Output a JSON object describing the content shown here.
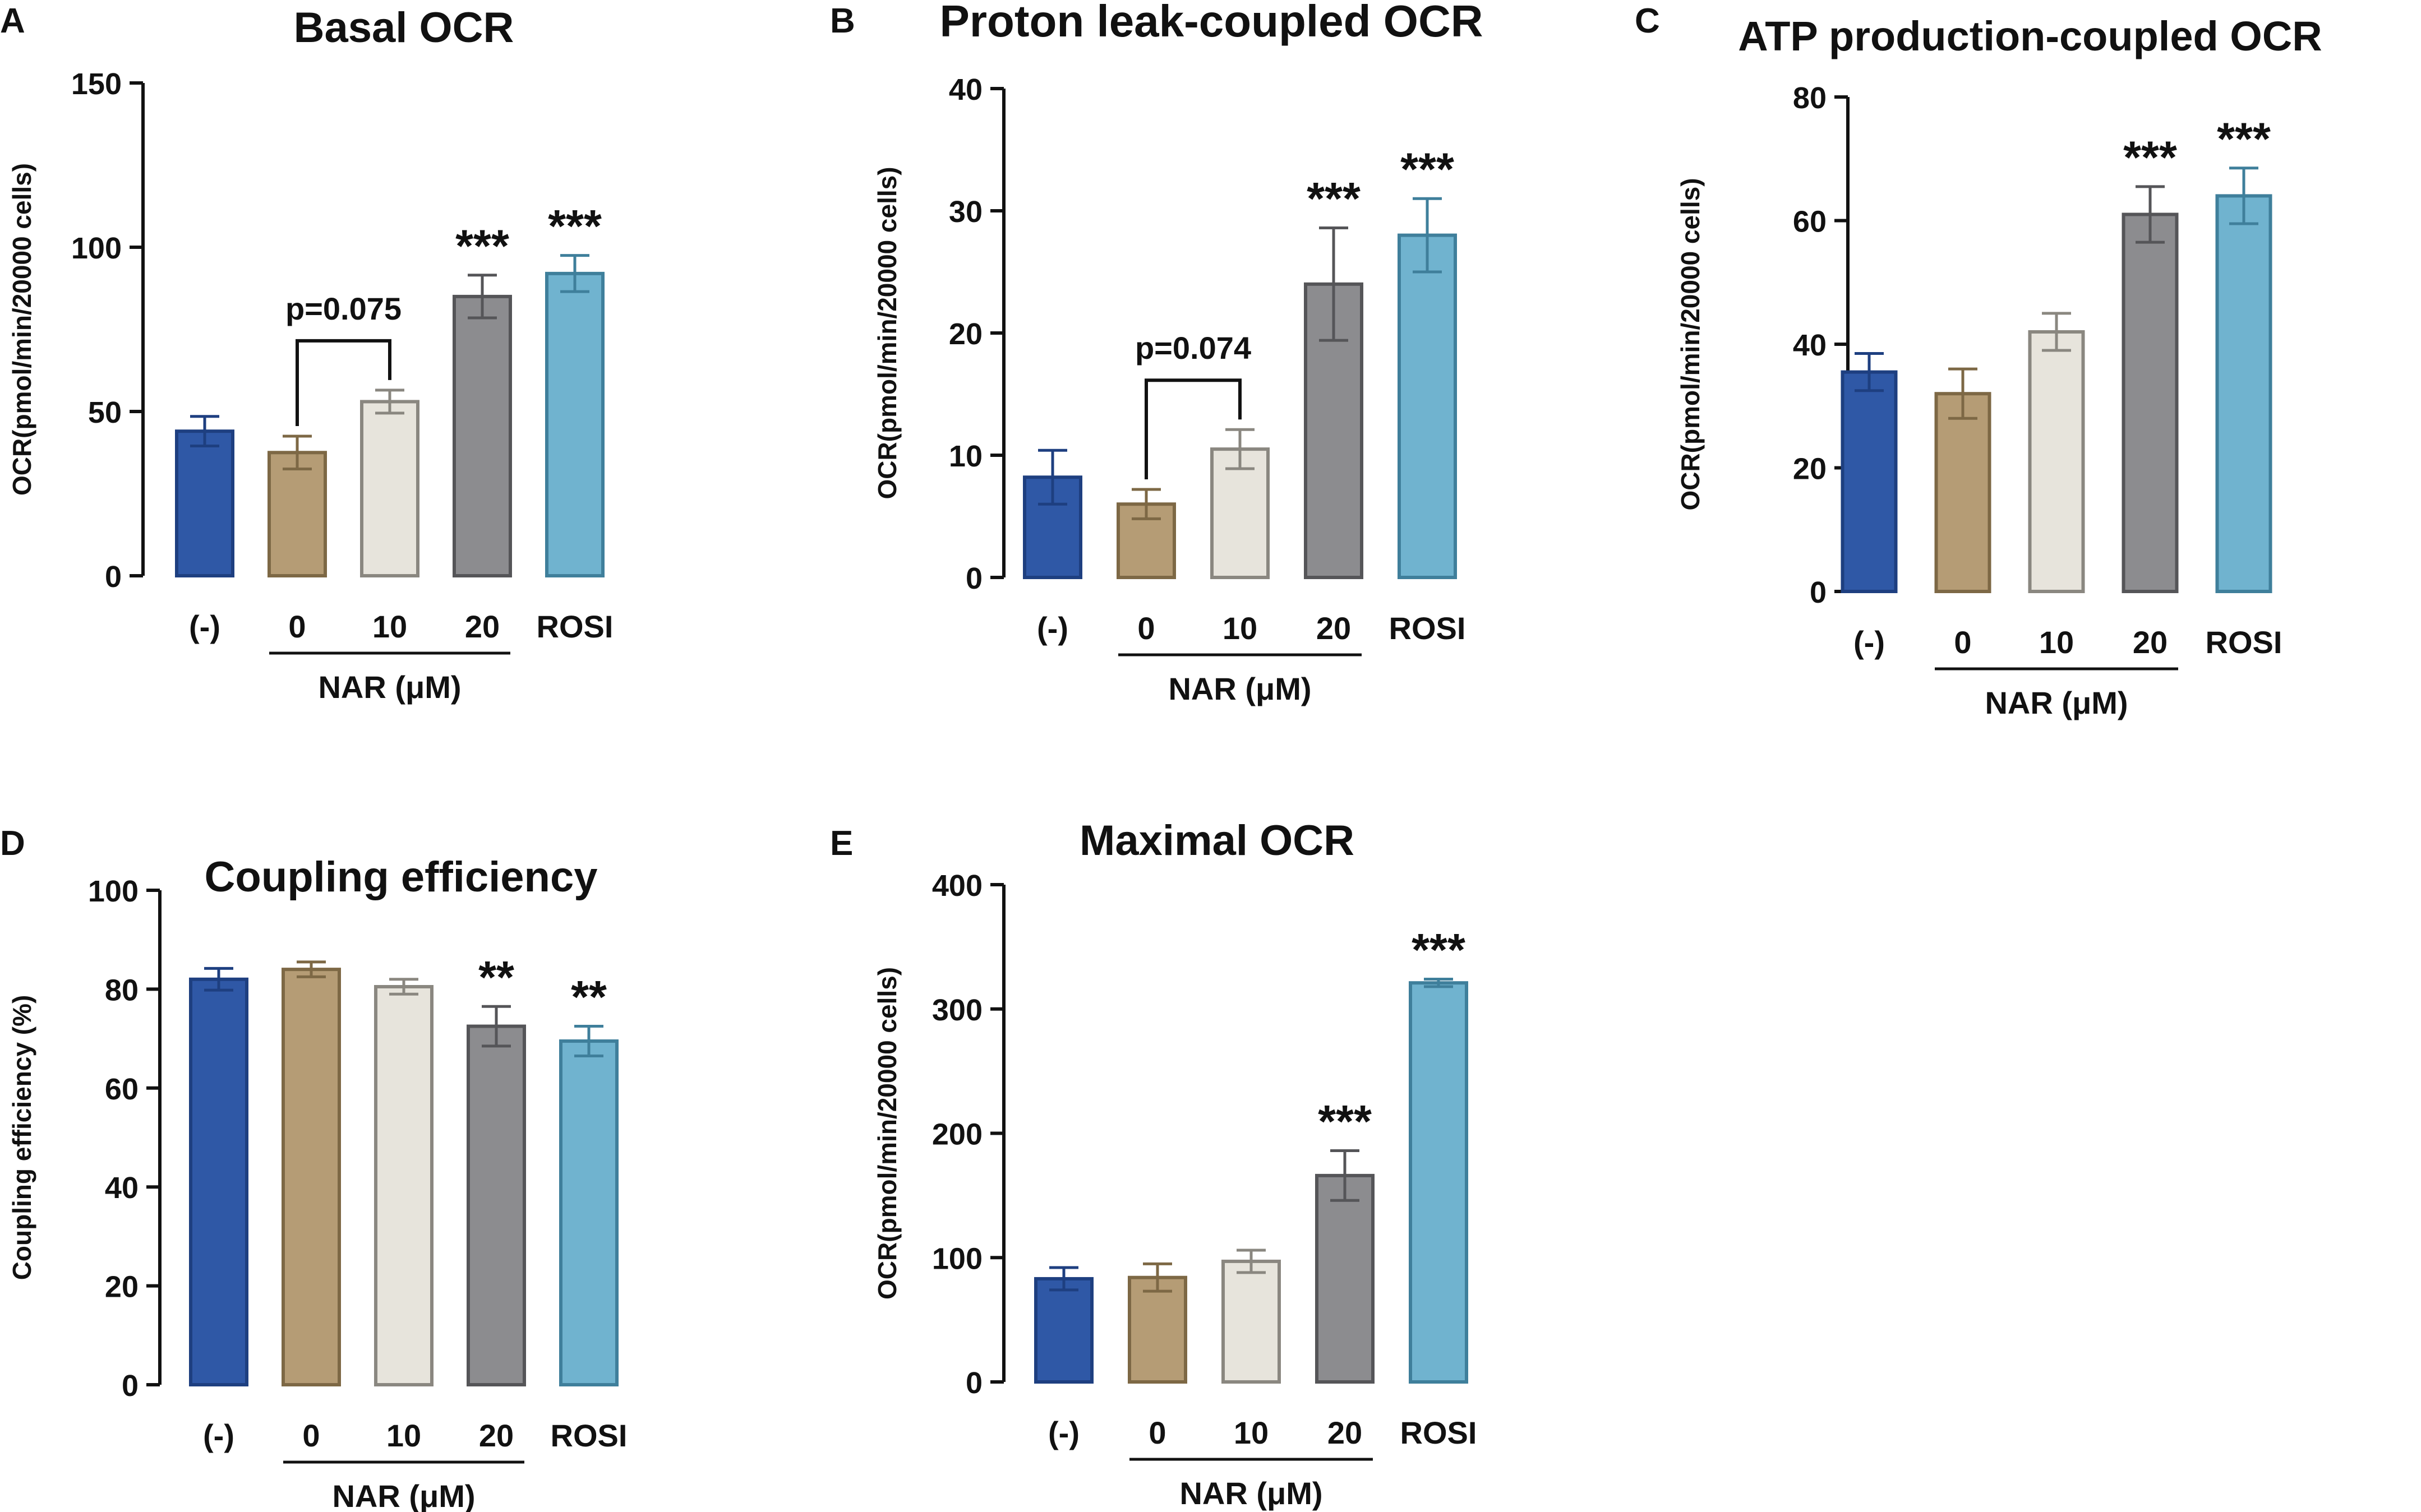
{
  "colors": {
    "vehicle": "#2f58a6",
    "nar0": "#b59c75",
    "nar10": "#e7e4dc",
    "nar20": "#8c8c8f",
    "rosi": "#70b3cf",
    "outline": "#1f1f1f"
  },
  "chart_data": [
    {
      "panel": "A",
      "type": "bar",
      "title": "Basal OCR",
      "ylabel": "OCR(pmol/min/20000 cells)",
      "xlabel": "NAR (μM)",
      "categories": [
        "(-)",
        "0",
        "10",
        "20",
        "ROSI"
      ],
      "values": [
        44,
        37.5,
        53,
        85,
        92
      ],
      "errors": [
        4.5,
        5,
        3.5,
        6.5,
        5.5
      ],
      "significance": [
        "",
        "",
        "",
        "***",
        "***"
      ],
      "ylim": [
        0,
        150
      ],
      "yticks": [
        0,
        50,
        100,
        150
      ],
      "yticklabels": [
        "0",
        "50",
        "100",
        "150"
      ],
      "comparison": {
        "from": 1,
        "to": 2,
        "label": "p=0.075"
      }
    },
    {
      "panel": "B",
      "type": "bar",
      "title": "Proton leak-coupled OCR",
      "ylabel": "OCR(pmol/min/20000 cells)",
      "xlabel": "NAR (μM)",
      "categories": [
        "(-)",
        "0",
        "10",
        "20",
        "ROSI"
      ],
      "values": [
        8.2,
        6,
        10.5,
        24,
        28
      ],
      "errors": [
        2.2,
        1.2,
        1.6,
        4.6,
        3
      ],
      "significance": [
        "",
        "",
        "",
        "***",
        "***"
      ],
      "ylim": [
        0,
        40
      ],
      "yticks": [
        0,
        10,
        20,
        30,
        40
      ],
      "yticklabels": [
        "0",
        "10",
        "20",
        "30",
        "40"
      ],
      "comparison": {
        "from": 1,
        "to": 2,
        "label": "p=0.074"
      }
    },
    {
      "panel": "C",
      "type": "bar",
      "title": "ATP production-coupled OCR",
      "ylabel": "OCR(pmol/min/20000 cells)",
      "xlabel": "NAR (μM)",
      "categories": [
        "(-)",
        "0",
        "10",
        "20",
        "ROSI"
      ],
      "values": [
        35.5,
        32,
        42,
        61,
        64
      ],
      "errors": [
        3,
        4,
        3,
        4.5,
        4.5
      ],
      "significance": [
        "",
        "",
        "",
        "***",
        "***"
      ],
      "ylim": [
        0,
        80
      ],
      "yticks": [
        0,
        20,
        40,
        60,
        80
      ],
      "yticklabels": [
        "0",
        "20",
        "40",
        "60",
        "80"
      ]
    },
    {
      "panel": "D",
      "type": "bar",
      "title": "Coupling efficiency",
      "ylabel": "Coupling efficiency (%)",
      "xlabel": "NAR (μM)",
      "categories": [
        "(-)",
        "0",
        "10",
        "20",
        "ROSI"
      ],
      "values": [
        82,
        84,
        80.5,
        72.5,
        69.5
      ],
      "errors": [
        2.2,
        1.5,
        1.5,
        4,
        3
      ],
      "significance": [
        "",
        "",
        "",
        "**",
        "**"
      ],
      "ylim": [
        0,
        100
      ],
      "yticks": [
        0,
        20,
        40,
        60,
        80,
        100
      ],
      "yticklabels": [
        "0",
        "20",
        "40",
        "60",
        "80",
        "100"
      ]
    },
    {
      "panel": "E",
      "type": "bar",
      "title": "Maximal OCR",
      "ylabel": "OCR(pmol/min/20000 cells)",
      "xlabel": "NAR (μM)",
      "categories": [
        "(-)",
        "0",
        "10",
        "20",
        "ROSI"
      ],
      "values": [
        83,
        84,
        97,
        166,
        321
      ],
      "errors": [
        9,
        11,
        9,
        20,
        3
      ],
      "significance": [
        "",
        "",
        "",
        "***",
        "***"
      ],
      "ylim": [
        0,
        400
      ],
      "yticks": [
        0,
        100,
        200,
        300,
        400
      ],
      "yticklabels": [
        "0",
        "100",
        "200",
        "300",
        "400"
      ]
    }
  ]
}
